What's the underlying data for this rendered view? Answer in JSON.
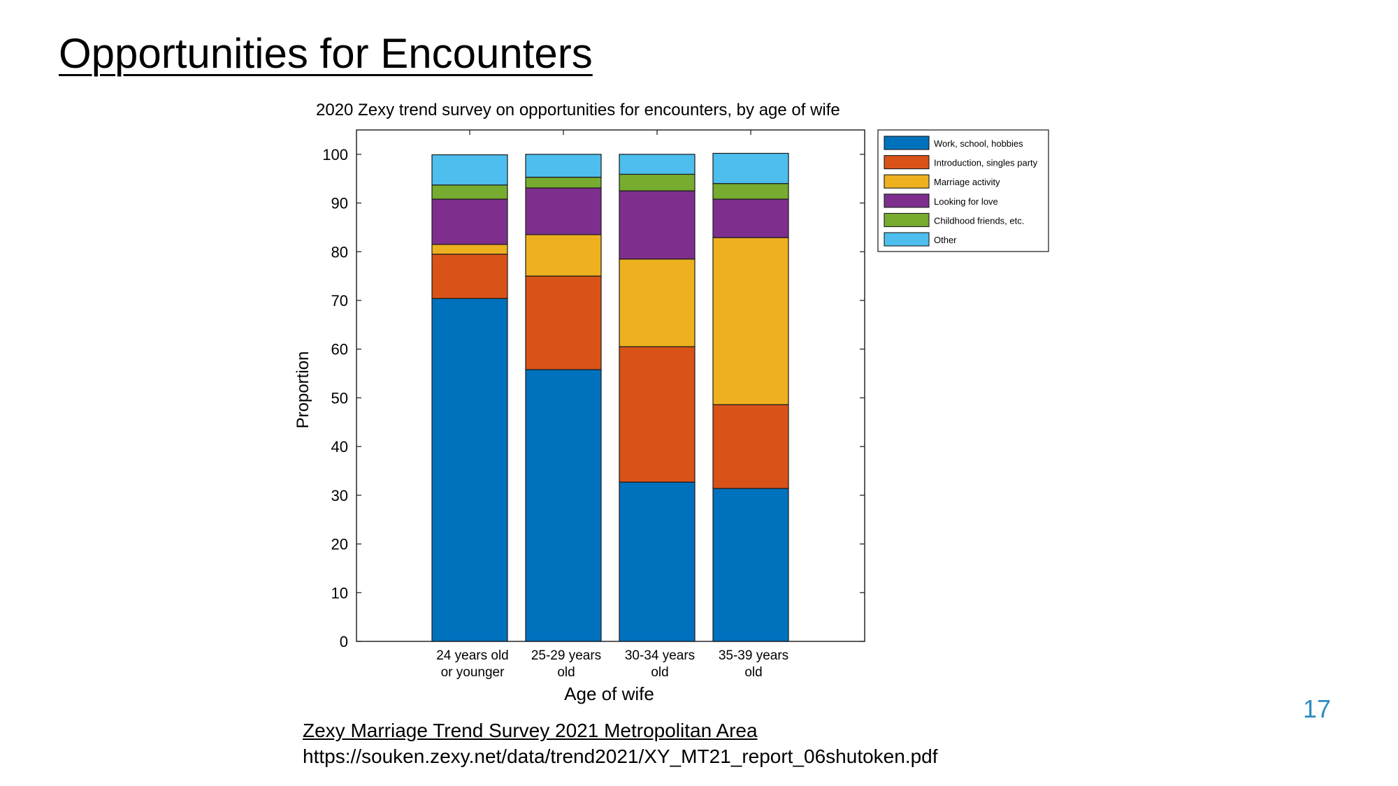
{
  "slide": {
    "title": "Opportunities for Encounters",
    "page_number": "17"
  },
  "source": {
    "title": "Zexy Marriage Trend Survey 2021 Metropolitan Area",
    "url": "https://souken.zexy.net/data/trend2021/XY_MT21_report_06shutoken.pdf"
  },
  "chart_data": {
    "type": "bar",
    "stacked": true,
    "title": "2020 Zexy trend survey on opportunities for encounters, by age of wife",
    "xlabel": "Age of wife",
    "ylabel": "Proportion",
    "ylim": [
      0,
      105
    ],
    "yticks": [
      0,
      10,
      20,
      30,
      40,
      50,
      60,
      70,
      80,
      90,
      100
    ],
    "grid": false,
    "legend_position": "outside-top-right",
    "categories": [
      [
        "24 years old",
        "or younger"
      ],
      [
        "25-29 years",
        "old"
      ],
      [
        "30-34 years",
        "old"
      ],
      [
        "35-39 years",
        "old"
      ]
    ],
    "series": [
      {
        "name": "Work, school, hobbies",
        "color": "#0072bd",
        "values": [
          70.4,
          55.8,
          32.7,
          31.4
        ]
      },
      {
        "name": "Introduction, singles party",
        "color": "#d95319",
        "values": [
          9.1,
          19.2,
          27.8,
          17.2
        ]
      },
      {
        "name": "Marriage activity",
        "color": "#edb120",
        "values": [
          2.0,
          8.5,
          18.0,
          34.3
        ]
      },
      {
        "name": "Looking for love",
        "color": "#7e2f8e",
        "values": [
          9.3,
          9.6,
          14.0,
          7.9
        ]
      },
      {
        "name": "Childhood friends, etc.",
        "color": "#77ac30",
        "values": [
          2.9,
          2.2,
          3.4,
          3.2
        ]
      },
      {
        "name": "Other",
        "color": "#4dbeee",
        "values": [
          6.2,
          4.7,
          4.1,
          6.2
        ]
      }
    ]
  }
}
